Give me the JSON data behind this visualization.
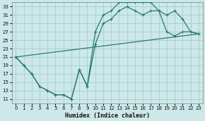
{
  "title": "",
  "xlabel": "Humidex (Indice chaleur)",
  "bg_color": "#cce8e8",
  "grid_color": "#aacccc",
  "line_color": "#2a7a70",
  "xlim": [
    -0.5,
    23.5
  ],
  "ylim": [
    10,
    34
  ],
  "xticks": [
    0,
    1,
    2,
    3,
    4,
    5,
    6,
    7,
    8,
    9,
    10,
    11,
    12,
    13,
    14,
    15,
    16,
    17,
    18,
    19,
    20,
    21,
    22,
    23
  ],
  "yticks": [
    11,
    13,
    15,
    17,
    19,
    21,
    23,
    25,
    27,
    29,
    31,
    33
  ],
  "line1_x": [
    0,
    1,
    2,
    3,
    4,
    5,
    6,
    7,
    7,
    8,
    9,
    10,
    11,
    12,
    13,
    14,
    15,
    16,
    17,
    18,
    19,
    20,
    21,
    22,
    23
  ],
  "line1_y": [
    21,
    19,
    17,
    14,
    13,
    12,
    12,
    11,
    11,
    18,
    14,
    27,
    31,
    32,
    34,
    34,
    34,
    34,
    34,
    32,
    27,
    26,
    27,
    27,
    26.5
  ],
  "line2_x": [
    0,
    1,
    2,
    3,
    4,
    5,
    6,
    7,
    8,
    9,
    10,
    11,
    12,
    13,
    14,
    15,
    16,
    17,
    18,
    19,
    20,
    21,
    22,
    23
  ],
  "line2_y": [
    21,
    19,
    17,
    14,
    13,
    12,
    12,
    11,
    18,
    14,
    24,
    29,
    30,
    32,
    33,
    32,
    31,
    32,
    32,
    31,
    32,
    30,
    27,
    26.5
  ],
  "line3_x": [
    0,
    23
  ],
  "line3_y": [
    21,
    26.5
  ]
}
